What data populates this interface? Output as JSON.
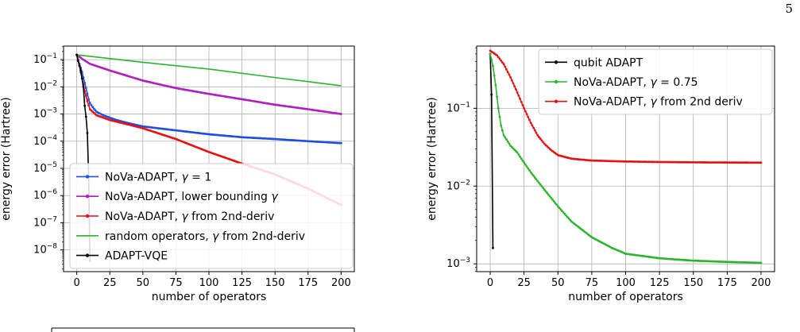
{
  "page_number": "5",
  "chart_data": [
    {
      "type": "line",
      "xlabel": "number of operators",
      "ylabel": "energy error (Hartree)",
      "log_y": true,
      "grid": true,
      "xlim": [
        -10,
        210
      ],
      "ylim_exp": [
        -8.8,
        -0.5
      ],
      "xticks": [
        0,
        25,
        50,
        75,
        100,
        125,
        150,
        175,
        200
      ],
      "yticks": [
        {
          "exp": -1,
          "base": "10",
          "power": "−1"
        },
        {
          "exp": -2,
          "base": "10",
          "power": "−2"
        },
        {
          "exp": -3,
          "base": "10",
          "power": "−3"
        },
        {
          "exp": -4,
          "base": "10",
          "power": "−4"
        },
        {
          "exp": -5,
          "base": "10",
          "power": "−5"
        },
        {
          "exp": -6,
          "base": "10",
          "power": "−6"
        },
        {
          "exp": -7,
          "base": "10",
          "power": "−7"
        },
        {
          "exp": -8,
          "base": "10",
          "power": "−8"
        }
      ],
      "legend_position": "lower-left",
      "series": [
        {
          "name_pre": "NoVa-ADAPT, ",
          "name_gamma": "γ",
          "name_post": " = 1",
          "color": "#1f4fe0",
          "marker": true,
          "points": [
            [
              0,
              0.15
            ],
            [
              1,
              0.1
            ],
            [
              2,
              0.07
            ],
            [
              3,
              0.05
            ],
            [
              4,
              0.035
            ],
            [
              5,
              0.022
            ],
            [
              6,
              0.014
            ],
            [
              7,
              0.009
            ],
            [
              8,
              0.0055
            ],
            [
              9,
              0.0035
            ],
            [
              10,
              0.0025
            ],
            [
              12,
              0.0018
            ],
            [
              15,
              0.0012
            ],
            [
              20,
              0.0009
            ],
            [
              30,
              0.0006
            ],
            [
              40,
              0.00045
            ],
            [
              50,
              0.00035
            ],
            [
              75,
              0.00025
            ],
            [
              100,
              0.00018
            ],
            [
              125,
              0.00014
            ],
            [
              150,
              0.00012
            ],
            [
              175,
              0.0001
            ],
            [
              200,
              8.5e-05
            ]
          ]
        },
        {
          "name_pre": "NoVa-ADAPT, lower bounding ",
          "name_gamma": "γ",
          "name_post": "",
          "color": "#b01fc0",
          "marker": true,
          "points": [
            [
              0,
              0.15
            ],
            [
              5,
              0.1
            ],
            [
              10,
              0.07
            ],
            [
              25,
              0.04
            ],
            [
              50,
              0.017
            ],
            [
              75,
              0.009
            ],
            [
              100,
              0.0055
            ],
            [
              125,
              0.0035
            ],
            [
              150,
              0.0022
            ],
            [
              175,
              0.0015
            ],
            [
              200,
              0.001
            ]
          ]
        },
        {
          "name_pre": "NoVa-ADAPT, ",
          "name_gamma": "γ",
          "name_post": " from 2nd-deriv",
          "color": "#e81010",
          "marker": true,
          "points": [
            [
              0,
              0.15
            ],
            [
              2,
              0.06
            ],
            [
              4,
              0.02
            ],
            [
              6,
              0.007
            ],
            [
              8,
              0.003
            ],
            [
              10,
              0.0015
            ],
            [
              15,
              0.0009
            ],
            [
              25,
              0.0006
            ],
            [
              40,
              0.0004
            ],
            [
              50,
              0.0003
            ],
            [
              75,
              0.00012
            ],
            [
              100,
              4e-05
            ],
            [
              125,
              1.5e-05
            ],
            [
              150,
              6e-06
            ],
            [
              175,
              1.8e-06
            ],
            [
              200,
              4.5e-07
            ]
          ]
        },
        {
          "name_pre": "random operators, ",
          "name_gamma": "γ",
          "name_post": " from 2nd-deriv",
          "color": "#2cb52c",
          "marker": false,
          "points": [
            [
              0,
              0.15
            ],
            [
              50,
              0.08
            ],
            [
              100,
              0.045
            ],
            [
              150,
              0.022
            ],
            [
              200,
              0.011
            ]
          ]
        },
        {
          "name_pre": "ADAPT-VQE",
          "name_gamma": "",
          "name_post": "",
          "color": "#000000",
          "marker": true,
          "points": [
            [
              0,
              0.15
            ],
            [
              1,
              0.09
            ],
            [
              2,
              0.06
            ],
            [
              3,
              0.04
            ],
            [
              4,
              0.02
            ],
            [
              5,
              0.01
            ],
            [
              6,
              0.002
            ],
            [
              7,
              0.0008
            ],
            [
              8,
              0.0002
            ],
            [
              9,
              5e-06
            ],
            [
              10,
              4e-09
            ]
          ]
        }
      ]
    },
    {
      "type": "line",
      "xlabel": "number of operators",
      "ylabel": "energy error (Hartree)",
      "log_y": true,
      "grid": true,
      "xlim": [
        -10,
        210
      ],
      "ylim_exp": [
        -3.1,
        -0.2
      ],
      "xticks": [
        0,
        25,
        50,
        75,
        100,
        125,
        150,
        175,
        200
      ],
      "yticks": [
        {
          "exp": -1,
          "base": "10",
          "power": "−1"
        },
        {
          "exp": -2,
          "base": "10",
          "power": "−2"
        },
        {
          "exp": -3,
          "base": "10",
          "power": "−3"
        }
      ],
      "legend_position": "upper-right",
      "series": [
        {
          "name_pre": "qubit ADAPT",
          "name_gamma": "",
          "name_post": "",
          "color": "#000000",
          "marker": true,
          "points": [
            [
              0,
              0.5
            ],
            [
              1,
              0.15
            ],
            [
              2,
              0.0016
            ]
          ]
        },
        {
          "name_pre": "NoVa-ADAPT, ",
          "name_gamma": "γ",
          "name_post": " = 0.75",
          "color": "#2cb52c",
          "marker": true,
          "points": [
            [
              0,
              0.5
            ],
            [
              2,
              0.35
            ],
            [
              4,
              0.2
            ],
            [
              6,
              0.1
            ],
            [
              8,
              0.06
            ],
            [
              10,
              0.045
            ],
            [
              15,
              0.033
            ],
            [
              20,
              0.027
            ],
            [
              25,
              0.02
            ],
            [
              30,
              0.015
            ],
            [
              40,
              0.009
            ],
            [
              50,
              0.0055
            ],
            [
              60,
              0.0035
            ],
            [
              75,
              0.0022
            ],
            [
              90,
              0.0016
            ],
            [
              100,
              0.00135
            ],
            [
              125,
              0.00118
            ],
            [
              150,
              0.0011
            ],
            [
              175,
              0.00106
            ],
            [
              200,
              0.00103
            ]
          ]
        },
        {
          "name_pre": "NoVa-ADAPT, ",
          "name_gamma": "γ",
          "name_post": " from 2nd deriv",
          "color": "#e81010",
          "marker": true,
          "points": [
            [
              0,
              0.55
            ],
            [
              5,
              0.48
            ],
            [
              10,
              0.37
            ],
            [
              15,
              0.25
            ],
            [
              20,
              0.16
            ],
            [
              25,
              0.1
            ],
            [
              30,
              0.065
            ],
            [
              35,
              0.045
            ],
            [
              40,
              0.035
            ],
            [
              45,
              0.029
            ],
            [
              50,
              0.025
            ],
            [
              60,
              0.0225
            ],
            [
              75,
              0.0213
            ],
            [
              100,
              0.0207
            ],
            [
              125,
              0.0204
            ],
            [
              150,
              0.0202
            ],
            [
              175,
              0.0201
            ],
            [
              200,
              0.02
            ]
          ]
        }
      ]
    }
  ]
}
